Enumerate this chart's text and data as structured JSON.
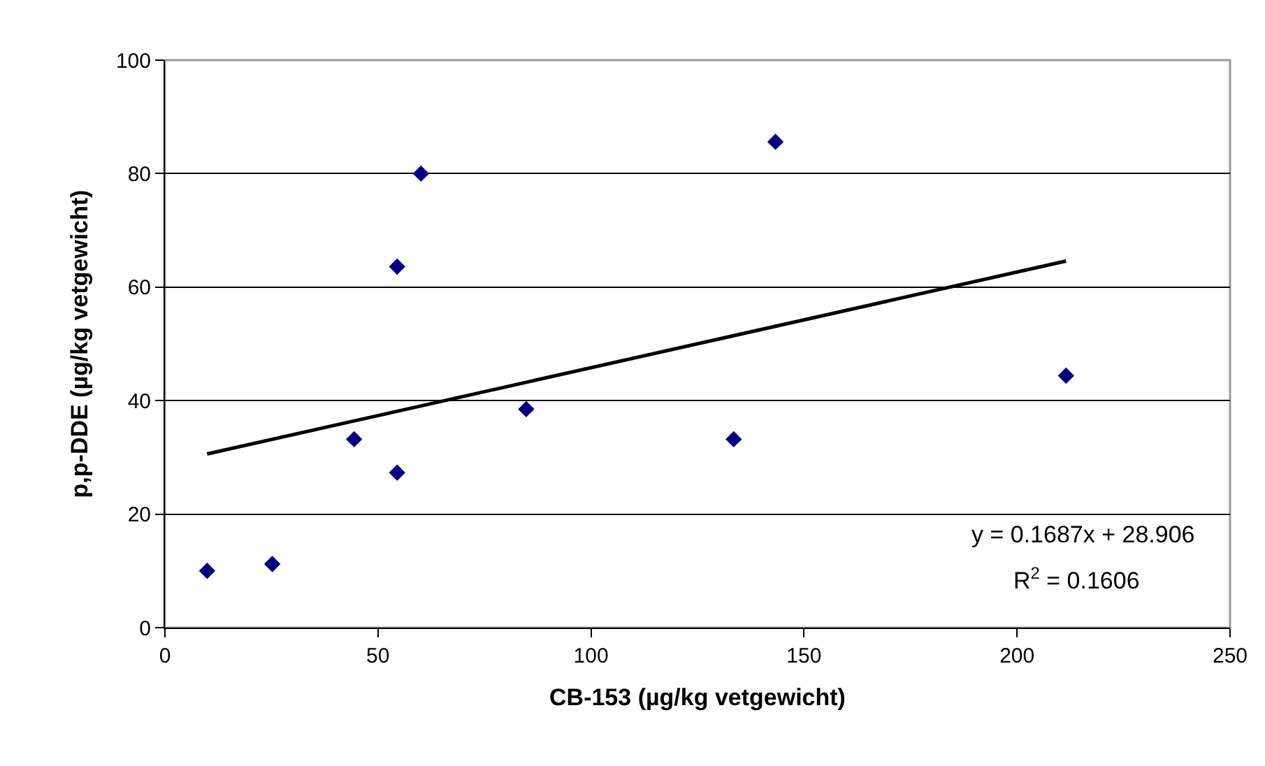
{
  "chart_data": {
    "type": "scatter",
    "xlabel": "CB-153 (µg/kg vetgewicht)",
    "ylabel": "p,p-DDE (µg/kg vetgewicht)",
    "series": [
      {
        "color": "#000080",
        "marker": "diamond",
        "x": [
          9.9,
          25.2,
          44.4,
          54.5,
          54.5,
          60.1,
          84.8,
          133.5,
          143.3,
          211.5
        ],
        "values": [
          10.0,
          11.2,
          33.2,
          63.6,
          27.3,
          80.0,
          38.5,
          33.2,
          85.6,
          44.4
        ]
      },
      {
        "type": "line",
        "color": "#000000",
        "x": [
          9.9,
          211.5
        ],
        "values": [
          30.6,
          64.6
        ]
      }
    ],
    "xlim": [
      0,
      250
    ],
    "xticks": [
      0,
      50,
      100,
      150,
      200,
      250
    ],
    "ylim": [
      0,
      100
    ],
    "yticks": [
      0,
      20,
      40,
      60,
      80,
      100
    ],
    "grid": "y",
    "legend": false,
    "annotations": [
      "y = 0.1687x + 28.906",
      "R$^{2}$ = 0.1606"
    ]
  }
}
